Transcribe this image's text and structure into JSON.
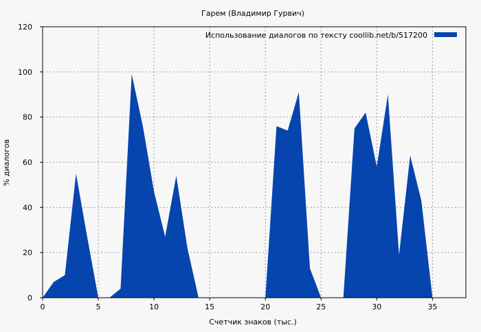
{
  "chart_data": {
    "type": "area",
    "title": "Гарем (Владимир Гурвич)",
    "xlabel": "Счетчик знаков (тыс.)",
    "ylabel": "% диалогов",
    "xlim": [
      0,
      38
    ],
    "ylim": [
      0,
      120
    ],
    "xticks": [
      0,
      5,
      10,
      15,
      20,
      25,
      30,
      35
    ],
    "yticks": [
      0,
      20,
      40,
      60,
      80,
      100,
      120
    ],
    "grid": true,
    "legend_position": "top-right",
    "series": [
      {
        "name": "Использование диалогов по тексту  coollib.net/b/517200",
        "color": "#0645ad",
        "x": [
          0,
          1,
          2,
          3,
          4,
          5,
          6,
          7,
          8,
          9,
          10,
          11,
          12,
          13,
          14,
          15,
          16,
          17,
          18,
          19,
          20,
          21,
          22,
          23,
          24,
          25,
          26,
          27,
          28,
          29,
          30,
          31,
          32,
          33,
          34,
          35
        ],
        "y": [
          0,
          7,
          10,
          55,
          27,
          0,
          0,
          4,
          99,
          76,
          47,
          27,
          54,
          22,
          0,
          0,
          0,
          0,
          0,
          0,
          0,
          76,
          74,
          91,
          13,
          0,
          0,
          0,
          75,
          82,
          58,
          90,
          19,
          63,
          43,
          0
        ]
      }
    ]
  }
}
